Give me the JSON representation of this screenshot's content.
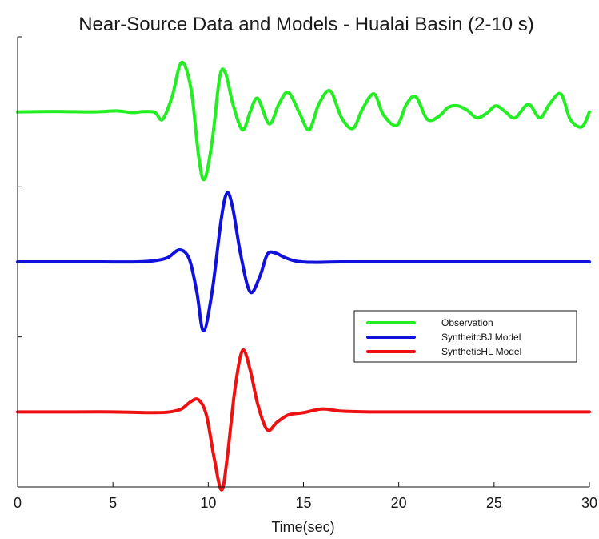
{
  "chart_data": {
    "type": "line",
    "title": "Near-Source Data and Models - Hualai Basin (2-10 s)",
    "xlabel": "Time(sec)",
    "ylabel": "",
    "xlim": [
      0,
      30
    ],
    "x_ticks": [
      0,
      5,
      10,
      15,
      20,
      25,
      30
    ],
    "x_tick_labels": [
      "0",
      "5",
      "10",
      "15",
      "20",
      "25",
      "30"
    ],
    "ylim": [
      0,
      3
    ],
    "y_ticks": [
      0,
      1,
      2,
      3
    ],
    "y_tick_labels": [
      "",
      "",
      "",
      ""
    ],
    "grid": false,
    "legend_position": "lower-right",
    "series": [
      {
        "name": "Observation",
        "color": "#22ee22",
        "baseline": 2.5,
        "x": [
          0,
          2,
          4,
          5.2,
          6,
          6.6,
          7.2,
          7.6,
          8.1,
          8.6,
          9.1,
          9.5,
          9.8,
          10.2,
          10.6,
          10.9,
          11.3,
          11.8,
          12.2,
          12.6,
          13.2,
          13.7,
          14.2,
          14.8,
          15.3,
          15.8,
          16.4,
          17.0,
          17.6,
          18.1,
          18.7,
          19.2,
          19.9,
          20.4,
          20.9,
          21.5,
          22.1,
          22.6,
          23.1,
          23.6,
          24.1,
          24.6,
          25.1,
          25.6,
          26.1,
          26.8,
          27.4,
          27.9,
          28.5,
          29.0,
          29.6,
          30
        ],
        "y": [
          2.5,
          2.503,
          2.5,
          2.507,
          2.496,
          2.502,
          2.497,
          2.45,
          2.6,
          2.83,
          2.65,
          2.2,
          2.05,
          2.3,
          2.73,
          2.76,
          2.55,
          2.38,
          2.5,
          2.59,
          2.42,
          2.55,
          2.63,
          2.49,
          2.38,
          2.55,
          2.64,
          2.46,
          2.39,
          2.52,
          2.62,
          2.48,
          2.41,
          2.55,
          2.6,
          2.45,
          2.47,
          2.53,
          2.54,
          2.51,
          2.46,
          2.49,
          2.54,
          2.5,
          2.46,
          2.55,
          2.46,
          2.55,
          2.62,
          2.45,
          2.4,
          2.5
        ]
      },
      {
        "name": "SyntheitcBJ Model",
        "color": "#1111dd",
        "baseline": 1.5,
        "x": [
          0,
          4,
          6.3,
          7.3,
          7.9,
          8.5,
          9.0,
          9.4,
          9.75,
          10.2,
          10.7,
          11.0,
          11.3,
          11.7,
          12.2,
          12.7,
          13.1,
          13.5,
          14.0,
          14.6,
          15.5,
          17,
          20,
          25,
          30
        ],
        "y": [
          1.5,
          1.5,
          1.5,
          1.51,
          1.53,
          1.58,
          1.52,
          1.3,
          1.04,
          1.3,
          1.8,
          1.96,
          1.85,
          1.55,
          1.3,
          1.4,
          1.55,
          1.56,
          1.53,
          1.505,
          1.497,
          1.5,
          1.5,
          1.5,
          1.5
        ]
      },
      {
        "name": "SyntheticHL Model",
        "color": "#ee1111",
        "baseline": 0.5,
        "x": [
          0,
          3,
          5,
          7.2,
          8.0,
          8.6,
          9.1,
          9.5,
          9.9,
          10.3,
          10.7,
          11.0,
          11.4,
          11.8,
          12.2,
          12.6,
          13.1,
          13.6,
          14.2,
          15.0,
          16.0,
          17.0,
          18.5,
          20,
          25,
          30
        ],
        "y": [
          0.5,
          0.5,
          0.5,
          0.495,
          0.5,
          0.52,
          0.57,
          0.58,
          0.48,
          0.2,
          -0.02,
          0.2,
          0.65,
          0.91,
          0.78,
          0.55,
          0.38,
          0.43,
          0.48,
          0.495,
          0.52,
          0.505,
          0.5,
          0.5,
          0.5,
          0.5
        ]
      }
    ]
  }
}
